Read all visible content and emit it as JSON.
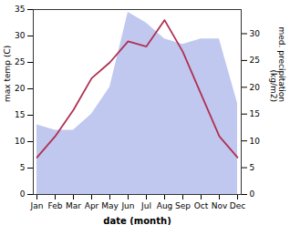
{
  "chart_data": {
    "type": "line",
    "categories": [
      "Jan",
      "Feb",
      "Mar",
      "Apr",
      "May",
      "Jun",
      "Jul",
      "Aug",
      "Sep",
      "Oct",
      "Nov",
      "Dec"
    ],
    "xlabel": "date (month)",
    "ylabel": "max temp (C)",
    "y2label": "med. precipitation\n(kg/m2)",
    "ylim": [
      0,
      35
    ],
    "yticks": [
      0,
      5,
      10,
      15,
      20,
      25,
      30,
      35
    ],
    "y2lim": [
      0,
      34.5
    ],
    "y2ticks": [
      0,
      5,
      10,
      15,
      20,
      25,
      30
    ],
    "series": [
      {
        "type": "area",
        "axis": "y2",
        "color": "#c0c8f0",
        "values": [
          13,
          12,
          12,
          15,
          20,
          34,
          32,
          29,
          28,
          29,
          29,
          17
        ]
      },
      {
        "type": "line",
        "color": "#b03050",
        "values": [
          7,
          11,
          16,
          22,
          25,
          29,
          28,
          33,
          27,
          19,
          11,
          7
        ]
      }
    ]
  }
}
